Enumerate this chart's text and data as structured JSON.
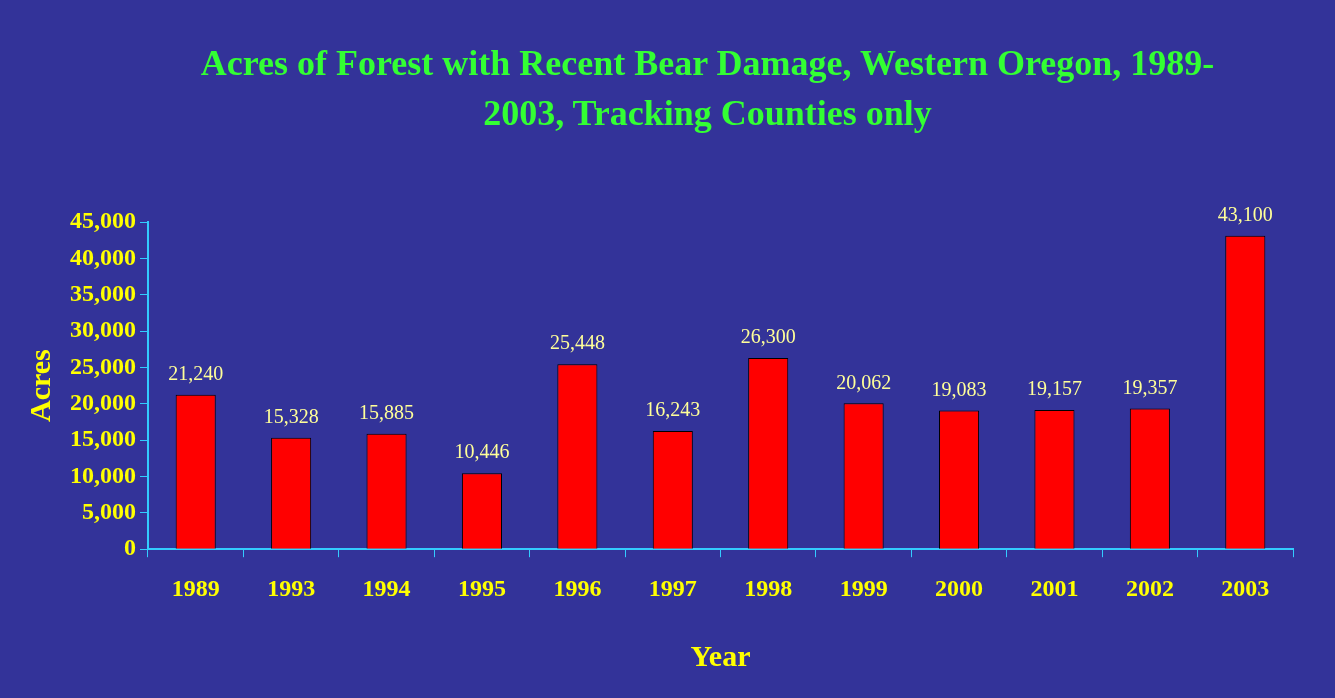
{
  "chart_data": {
    "type": "bar",
    "title": "Acres of Forest with Recent Bear Damage, Western Oregon, 1989-2003, Tracking Counties only",
    "xlabel": "Year",
    "ylabel": "Acres",
    "categories": [
      "1989",
      "1993",
      "1994",
      "1995",
      "1996",
      "1997",
      "1998",
      "1999",
      "2000",
      "2001",
      "2002",
      "2003"
    ],
    "values": [
      21240,
      15328,
      15885,
      10446,
      25448,
      16243,
      26300,
      20062,
      19083,
      19157,
      19357,
      43100
    ],
    "color": "#ff0000",
    "ylim": [
      0,
      45000
    ],
    "yticks": [
      {
        "value": 0,
        "label": "0"
      },
      {
        "value": 5000,
        "label": "5,000"
      },
      {
        "value": 10000,
        "label": "10,000"
      },
      {
        "value": 15000,
        "label": "15,000"
      },
      {
        "value": 20000,
        "label": "20,000"
      },
      {
        "value": 25000,
        "label": "25,000"
      },
      {
        "value": 30000,
        "label": "30,000"
      },
      {
        "value": 35000,
        "label": "35,000"
      },
      {
        "value": 40000,
        "label": "40,000"
      },
      {
        "value": 45000,
        "label": "45,000"
      }
    ],
    "value_labels": [
      "21,240",
      "15,328",
      "15,885",
      "10,446",
      "25,448",
      "16,243",
      "26,300",
      "20,062",
      "19,083",
      "19,157",
      "19,357",
      "43,100"
    ],
    "grid": false,
    "legend": false
  }
}
